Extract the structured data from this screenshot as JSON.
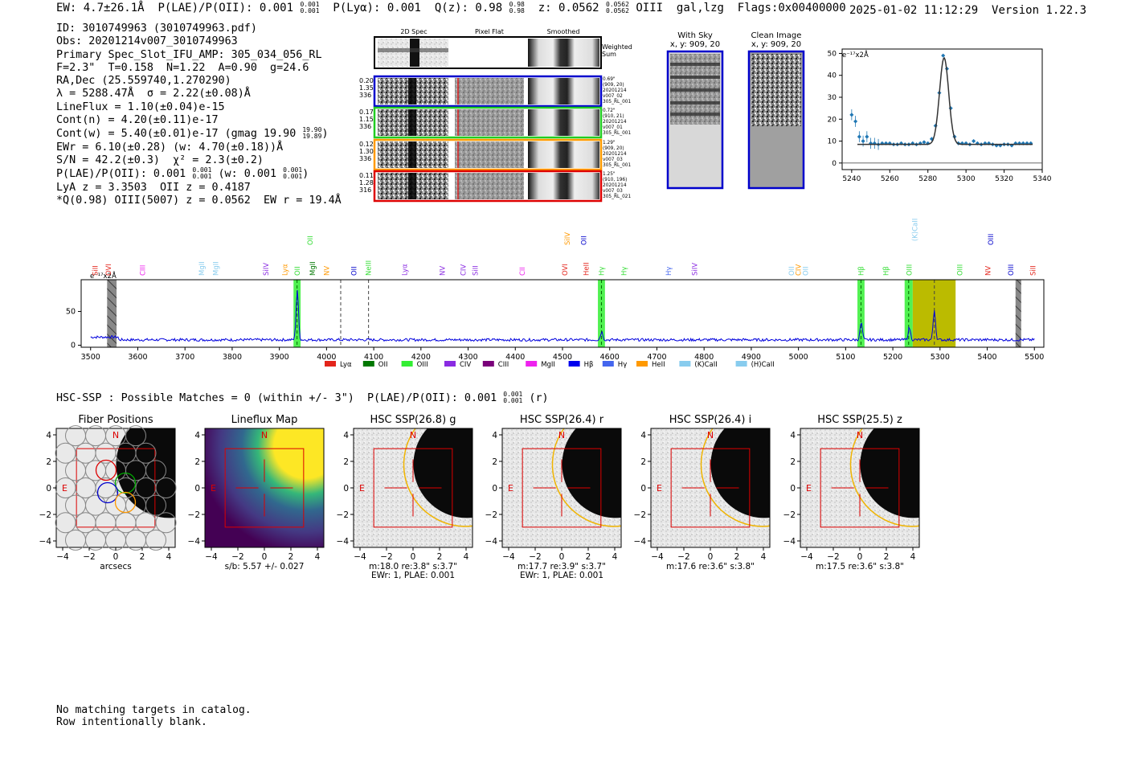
{
  "header": {
    "ew": "EW: 4.7±26.1Å",
    "plae": "P(LAE)/P(OII): 0.001",
    "plae_hi": "0.001",
    "plae_lo": "0.001",
    "plya": "P(Lyα): 0.001",
    "qz": "Q(z): 0.98",
    "qz_hi": "0.98",
    "qz_lo": "0.98",
    "z": "z: 0.0562",
    "z_hi": "0.0562",
    "z_lo": "0.0562",
    "line": "OIII",
    "tags": "gal,lzg",
    "flags": "Flags:0x00400000",
    "datetime": "2025-01-02 11:12:29",
    "version": "Version 1.22.3"
  },
  "info": {
    "id": "ID: 3010749963 (3010749963.pdf)",
    "obs": "Obs: 20201214v007_3010749963",
    "primary": "Primary Spec_Slot_IFU_AMP: 305_034_056_RL",
    "params": "F=2.3\"  T=0.158  N=1.22  A=0.90  g=24.6",
    "radec": "RA,Dec (25.559740,1.270290)",
    "lambda": "λ = 5288.47Å  σ = 2.22(±0.08)Å",
    "lineflux": "LineFlux = 1.10(±0.04)e-15",
    "contn": "Cont(n) = 4.20(±0.11)e-17",
    "contw": "Cont(w) = 5.40(±0.01)e-17 (gmag 19.90",
    "contw_hi": "19.90",
    "contw_lo": "19.89",
    "contw_end": ")",
    "ewr": "EWr = 6.10(±0.28) (w: 4.70(±0.18))Å",
    "sn": "S/N = 42.2(±0.3)  χ² = 2.3(±0.2)",
    "plae": "P(LAE)/P(OII): 0.001",
    "plae_hi": "0.001",
    "plae_lo": "0.001",
    "plae_w": " (w: 0.001",
    "plae_w_hi": "0.001",
    "plae_w_lo": "0.001",
    "plae_w_end": ")",
    "lya": "LyA z = 3.3503  OII z = 0.4187",
    "q": "*Q(0.98) OIII(5007) z = 0.0562  EW r = 19.4Å"
  },
  "cutouts": {
    "col_headers": [
      "2D Spec",
      "Pixel Flat",
      "Smoothed"
    ],
    "weighted_label": [
      "Weighted",
      "Sum"
    ],
    "rows": [
      {
        "vals": [
          "0.20",
          "1.35",
          "336"
        ],
        "meta": [
          "0.69\"",
          "(909, 20)",
          "20201214",
          "v007_02",
          "305_RL_001"
        ],
        "color": "#0000cc"
      },
      {
        "vals": [
          "0.17",
          "1.15",
          "336"
        ],
        "meta": [
          "0.72\"",
          "(910, 21)",
          "20201214",
          "v007_01",
          "305_RL_001"
        ],
        "color": "#22cc22"
      },
      {
        "vals": [
          "0.12",
          "1.30",
          "336"
        ],
        "meta": [
          "1.29\"",
          "(909, 20)",
          "20201214",
          "v007_03",
          "305_RL_001"
        ],
        "color": "#ff9900"
      },
      {
        "vals": [
          "0.11",
          "1.28",
          "316"
        ],
        "meta": [
          "1.25\"",
          "(910, 196)",
          "20201214",
          "v007_03",
          "305_RL_021"
        ],
        "color": "#dd0000"
      }
    ]
  },
  "sky": {
    "with_sky": [
      "With Sky",
      "x, y: 909, 20"
    ],
    "clean": [
      "Clean Image",
      "x, y: 909, 20"
    ]
  },
  "colors": {
    "blue": "#0000dd",
    "green": "#33ee33",
    "olive": "#bbbb00",
    "gray": "#888888",
    "fit": "#000000",
    "data": "#1f77b4"
  },
  "chart_data": [
    {
      "type": "scatter",
      "title": "",
      "ylabel_unit": "e⁻¹⁷x2Å",
      "xlim": [
        5235,
        5340
      ],
      "ylim": [
        -3,
        52
      ],
      "xticks": [
        5240,
        5260,
        5280,
        5300,
        5320,
        5340
      ],
      "yticks": [
        0,
        10,
        20,
        30,
        40,
        50
      ],
      "x": [
        5240,
        5242,
        5244,
        5246,
        5248,
        5250,
        5252,
        5254,
        5256,
        5258,
        5260,
        5262,
        5264,
        5266,
        5268,
        5270,
        5272,
        5274,
        5276,
        5278,
        5280,
        5282,
        5284,
        5286,
        5288,
        5290,
        5292,
        5294,
        5296,
        5298,
        5300,
        5302,
        5304,
        5306,
        5308,
        5310,
        5312,
        5314,
        5316,
        5318,
        5320,
        5322,
        5324,
        5326,
        5328,
        5330,
        5332,
        5334
      ],
      "y": [
        22,
        19,
        12,
        10,
        12,
        9,
        9,
        8.5,
        9,
        9,
        9,
        8.5,
        8.5,
        9,
        8.5,
        8.5,
        9,
        8.5,
        9,
        9.5,
        9,
        11,
        17,
        32,
        49,
        43,
        25,
        12,
        9,
        9,
        9,
        8.5,
        10,
        9,
        8.5,
        9,
        9,
        8.5,
        8,
        8,
        8.5,
        8.5,
        8,
        9,
        9,
        9,
        9,
        9
      ],
      "fit_center": 5288.5,
      "fit_sigma": 2.4,
      "fit_amp": 39.5,
      "fit_cont": 8.5
    },
    {
      "type": "line",
      "ylabel_unit": "e⁻¹⁷x2Å",
      "xlim": [
        3480,
        5520
      ],
      "ylim": [
        -3,
        97
      ],
      "xticks": [
        3500,
        3600,
        3700,
        3800,
        3900,
        4000,
        4100,
        4200,
        4300,
        4400,
        4500,
        4600,
        4700,
        4800,
        4900,
        5000,
        5100,
        5200,
        5300,
        5400,
        5500
      ],
      "yticks": [
        0,
        50
      ],
      "baseline": 8,
      "peaks": [
        {
          "x": 3938,
          "amp": 74,
          "sigma": 2.5
        },
        {
          "x": 4583,
          "amp": 12,
          "sigma": 2.5
        },
        {
          "x": 5133,
          "amp": 25,
          "sigma": 2.5
        },
        {
          "x": 5235,
          "amp": 18,
          "sigma": 2.5
        },
        {
          "x": 5288,
          "amp": 44,
          "sigma": 2.5
        }
      ],
      "green_bands": [
        [
          3930,
          3945
        ],
        [
          4575,
          4590
        ],
        [
          5125,
          5140
        ],
        [
          5225,
          5242
        ]
      ],
      "olive_band": [
        5242,
        5333
      ],
      "hatched_bands": [
        [
          3535,
          3555
        ],
        [
          5460,
          5472
        ]
      ],
      "dashed_lines": [
        4030,
        4089,
        5288
      ],
      "line_labels": [
        {
          "x": 3510,
          "t": "SiII",
          "c": "#e3241b",
          "row": 0
        },
        {
          "x": 3538,
          "t": "OVI",
          "c": "#e3241b",
          "row": 0
        },
        {
          "x": 3610,
          "t": "CIII",
          "c": "#ee22ee",
          "row": 0
        },
        {
          "x": 3735,
          "t": "MgII",
          "c": "#88ccee",
          "row": 0
        },
        {
          "x": 3765,
          "t": "MgII",
          "c": "#88ccee",
          "row": 0
        },
        {
          "x": 3872,
          "t": "SiIV",
          "c": "#8a2be2",
          "row": 0
        },
        {
          "x": 3912,
          "t": "Lyα",
          "c": "#ff9900",
          "row": 0
        },
        {
          "x": 3938,
          "t": "OII",
          "c": "#33dd33",
          "row": 0
        },
        {
          "x": 3970,
          "t": "MgII",
          "c": "#007700",
          "row": 0
        },
        {
          "x": 4000,
          "t": "NV",
          "c": "#ff9900",
          "row": 0
        },
        {
          "x": 4058,
          "t": "OII",
          "c": "#0000cc",
          "row": 0
        },
        {
          "x": 4089,
          "t": "NeIII",
          "c": "#33dd33",
          "row": 0
        },
        {
          "x": 4165,
          "t": "Lyα",
          "c": "#8a2be2",
          "row": 0
        },
        {
          "x": 4245,
          "t": "NV",
          "c": "#8a2be2",
          "row": 0
        },
        {
          "x": 4290,
          "t": "CIV",
          "c": "#8a2be2",
          "row": 0
        },
        {
          "x": 4315,
          "t": "SiII",
          "c": "#8a2be2",
          "row": 0
        },
        {
          "x": 4415,
          "t": "CII",
          "c": "#ee22ee",
          "row": 0
        },
        {
          "x": 4505,
          "t": "OVI",
          "c": "#e3241b",
          "row": 0
        },
        {
          "x": 4550,
          "t": "HeII",
          "c": "#e3241b",
          "row": 0
        },
        {
          "x": 4583,
          "t": "Hγ",
          "c": "#33dd33",
          "row": 0
        },
        {
          "x": 4630,
          "t": "Hγ",
          "c": "#33dd33",
          "row": 0
        },
        {
          "x": 4725,
          "t": "Hγ",
          "c": "#4466ee",
          "row": 0
        },
        {
          "x": 4780,
          "t": "SiIV",
          "c": "#8a2be2",
          "row": 0
        },
        {
          "x": 4985,
          "t": "OII",
          "c": "#88ccee",
          "row": 0
        },
        {
          "x": 5000,
          "t": "CIV",
          "c": "#ff9900",
          "row": 0
        },
        {
          "x": 5015,
          "t": "OII",
          "c": "#88ccee",
          "row": 0
        },
        {
          "x": 5133,
          "t": "Hβ",
          "c": "#33dd33",
          "row": 0
        },
        {
          "x": 5185,
          "t": "Hβ",
          "c": "#33dd33",
          "row": 0
        },
        {
          "x": 5235,
          "t": "OIII",
          "c": "#33dd33",
          "row": 0
        },
        {
          "x": 5342,
          "t": "OIII",
          "c": "#33dd33",
          "row": 0
        },
        {
          "x": 5402,
          "t": "NV",
          "c": "#e3241b",
          "row": 0
        },
        {
          "x": 5450,
          "t": "OIII",
          "c": "#0000cc",
          "row": 0
        },
        {
          "x": 5497,
          "t": "SiII",
          "c": "#e3241b",
          "row": 0
        },
        {
          "x": 3965,
          "t": "OII",
          "c": "#33dd33",
          "row": 1
        },
        {
          "x": 4510,
          "t": "SiIV",
          "c": "#ff9900",
          "row": 1
        },
        {
          "x": 4545,
          "t": "OII",
          "c": "#0000cc",
          "row": 1
        },
        {
          "x": 5247,
          "t": "(K)CaII",
          "c": "#88ccee",
          "row": 2
        },
        {
          "x": 5408,
          "t": "OIII",
          "c": "#0000cc",
          "row": 1
        }
      ],
      "legend": [
        {
          "t": "Lyα",
          "c": "#e3241b"
        },
        {
          "t": "OII",
          "c": "#007700"
        },
        {
          "t": "OIII",
          "c": "#33ee33"
        },
        {
          "t": "CIV",
          "c": "#8a2be2"
        },
        {
          "t": "CIII",
          "c": "#7a007a"
        },
        {
          "t": "MgII",
          "c": "#ee22ee"
        },
        {
          "t": "Hβ",
          "c": "#0000ee"
        },
        {
          "t": "Hγ",
          "c": "#4466ee"
        },
        {
          "t": "HeII",
          "c": "#ff9900"
        },
        {
          "t": "(K)CaII",
          "c": "#88ccee"
        },
        {
          "t": "(H)CaII",
          "c": "#88ccee"
        }
      ]
    }
  ],
  "hsc": {
    "line": "HSC-SSP : Possible Matches = 0 (within +/- 3\")  P(LAE)/P(OII): 0.001",
    "hi": "0.001",
    "lo": "0.001",
    "end": " (r)"
  },
  "panels": [
    {
      "title": "Fiber Positions",
      "cap1": "arcsecs",
      "cap2": ""
    },
    {
      "title": "Lineflux Map",
      "cap1": "s/b: 5.57 +/- 0.027",
      "cap2": ""
    },
    {
      "title": "HSC SSP(26.8) g",
      "cap1": "m:18.0  re:3.8\"  s:3.7\"",
      "cap2": "EWr: 1, PLAE: 0.001"
    },
    {
      "title": "HSC SSP(26.4) r",
      "cap1": "m:17.7  re:3.9\"  s:3.7\"",
      "cap2": "EWr: 1, PLAE: 0.001"
    },
    {
      "title": "HSC SSP(26.4) i",
      "cap1": "m:17.6  re:3.6\"  s:3.8\"",
      "cap2": ""
    },
    {
      "title": "HSC SSP(25.5) z",
      "cap1": "m:17.5  re:3.6\"  s:3.8\"",
      "cap2": ""
    }
  ],
  "panel_axis": {
    "ticks": [
      "−4",
      "−2",
      "0",
      "2",
      "4"
    ],
    "yticks": [
      "4",
      "2",
      "0",
      "−2",
      "−4"
    ],
    "north": "N",
    "east": "E"
  },
  "footer": {
    "line1": "No matching targets in catalog.",
    "line2": "Row intentionally blank."
  }
}
